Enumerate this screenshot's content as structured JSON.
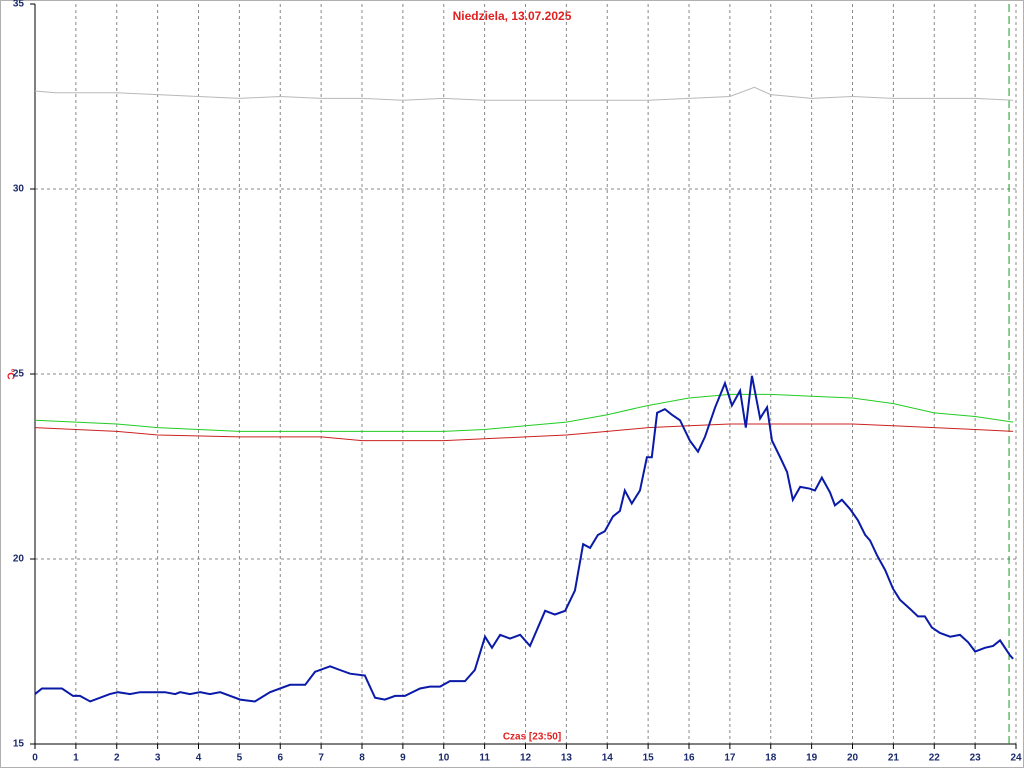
{
  "chart_data": {
    "type": "line",
    "title": "Niedziela, 13.07.2025",
    "x_label": "Czas [23:50]",
    "y_label": "°C",
    "xlim": [
      0,
      24
    ],
    "xticks": [
      0,
      1,
      2,
      3,
      4,
      5,
      6,
      7,
      8,
      9,
      10,
      11,
      12,
      13,
      14,
      15,
      16,
      17,
      18,
      19,
      20,
      21,
      22,
      23,
      24
    ],
    "ylim": [
      15,
      35
    ],
    "yticks": [
      15,
      20,
      25,
      30,
      35
    ],
    "grid": true,
    "current_time_x": 23.83,
    "series": [
      {
        "name": "gray",
        "color": "#b8b8b8",
        "x": [
          0,
          0.5,
          1,
          2,
          3,
          4,
          5,
          6,
          7,
          8,
          9,
          10,
          11,
          12,
          13,
          14,
          15,
          16,
          17,
          17.6,
          18,
          19,
          20,
          21,
          22,
          23,
          23.93
        ],
        "values": [
          32.65,
          32.6,
          32.6,
          32.6,
          32.55,
          32.5,
          32.45,
          32.5,
          32.45,
          32.45,
          32.4,
          32.45,
          32.4,
          32.4,
          32.4,
          32.4,
          32.4,
          32.45,
          32.5,
          32.75,
          32.55,
          32.45,
          32.5,
          32.45,
          32.45,
          32.45,
          32.4
        ]
      },
      {
        "name": "green",
        "color": "#22cc22",
        "x": [
          0,
          2,
          3,
          4,
          5,
          6,
          7,
          8,
          9,
          10,
          11,
          12,
          13,
          14,
          15,
          16,
          17,
          18,
          19,
          20,
          21,
          22,
          23,
          23.93
        ],
        "values": [
          23.75,
          23.65,
          23.55,
          23.5,
          23.45,
          23.45,
          23.45,
          23.45,
          23.45,
          23.45,
          23.5,
          23.6,
          23.7,
          23.9,
          24.15,
          24.35,
          24.45,
          24.45,
          24.4,
          24.35,
          24.2,
          23.95,
          23.85,
          23.7
        ]
      },
      {
        "name": "red",
        "color": "#cc2020",
        "x": [
          0,
          2,
          3,
          5,
          7,
          8,
          10,
          11,
          12,
          13,
          14,
          15,
          16,
          17,
          18,
          19,
          20,
          21,
          22,
          23,
          23.93
        ],
        "values": [
          23.55,
          23.45,
          23.35,
          23.3,
          23.3,
          23.2,
          23.2,
          23.25,
          23.3,
          23.35,
          23.45,
          23.55,
          23.6,
          23.65,
          23.65,
          23.65,
          23.65,
          23.6,
          23.55,
          23.5,
          23.45
        ]
      },
      {
        "name": "blue",
        "color": "#0a1aa8",
        "x": [
          0,
          0.17,
          0.66,
          0.93,
          1.1,
          1.35,
          1.83,
          2.03,
          2.32,
          2.57,
          2.81,
          3.18,
          3.43,
          3.55,
          3.79,
          4.04,
          4.28,
          4.53,
          5.02,
          5.38,
          5.75,
          6.24,
          6.61,
          6.85,
          7.22,
          7.46,
          7.71,
          8.07,
          8.32,
          8.56,
          8.81,
          9.05,
          9.42,
          9.66,
          9.91,
          10.15,
          10.52,
          10.76,
          11.01,
          11.18,
          11.38,
          11.62,
          11.87,
          12.11,
          12.48,
          12.72,
          12.97,
          13.21,
          13.41,
          13.58,
          13.77,
          13.94,
          14.14,
          14.31,
          14.43,
          14.6,
          14.8,
          14.97,
          15.09,
          15.22,
          15.41,
          15.58,
          15.78,
          16.02,
          16.22,
          16.39,
          16.64,
          16.88,
          17.05,
          17.25,
          17.39,
          17.54,
          17.74,
          17.91,
          18.03,
          18.23,
          18.4,
          18.54,
          18.72,
          18.96,
          19.08,
          19.25,
          19.45,
          19.57,
          19.74,
          19.94,
          20.13,
          20.31,
          20.43,
          20.6,
          20.8,
          20.99,
          21.16,
          21.41,
          21.6,
          21.77,
          21.94,
          22.14,
          22.39,
          22.63,
          22.83,
          23,
          23.24,
          23.44,
          23.61,
          23.85,
          23.93
        ],
        "values": [
          16.35,
          16.5,
          16.5,
          16.3,
          16.3,
          16.15,
          16.35,
          16.4,
          16.35,
          16.4,
          16.4,
          16.4,
          16.35,
          16.4,
          16.35,
          16.4,
          16.35,
          16.4,
          16.2,
          16.15,
          16.4,
          16.6,
          16.6,
          16.95,
          17.1,
          17,
          16.9,
          16.85,
          16.25,
          16.2,
          16.3,
          16.3,
          16.5,
          16.55,
          16.55,
          16.7,
          16.7,
          17,
          17.9,
          17.6,
          17.95,
          17.85,
          17.95,
          17.65,
          18.6,
          18.5,
          18.6,
          19.15,
          20.4,
          20.3,
          20.65,
          20.75,
          21.15,
          21.3,
          21.85,
          21.5,
          21.85,
          22.75,
          22.75,
          23.95,
          24.05,
          23.9,
          23.75,
          23.2,
          22.9,
          23.3,
          24.1,
          24.75,
          24.15,
          24.55,
          23.55,
          24.95,
          23.8,
          24.1,
          23.2,
          22.75,
          22.35,
          21.6,
          21.95,
          21.9,
          21.85,
          22.2,
          21.8,
          21.45,
          21.6,
          21.35,
          21.05,
          20.65,
          20.5,
          20.1,
          19.7,
          19.2,
          18.9,
          18.65,
          18.45,
          18.45,
          18.15,
          18,
          17.9,
          17.95,
          17.75,
          17.5,
          17.6,
          17.65,
          17.8,
          17.4,
          17.3
        ]
      }
    ]
  }
}
